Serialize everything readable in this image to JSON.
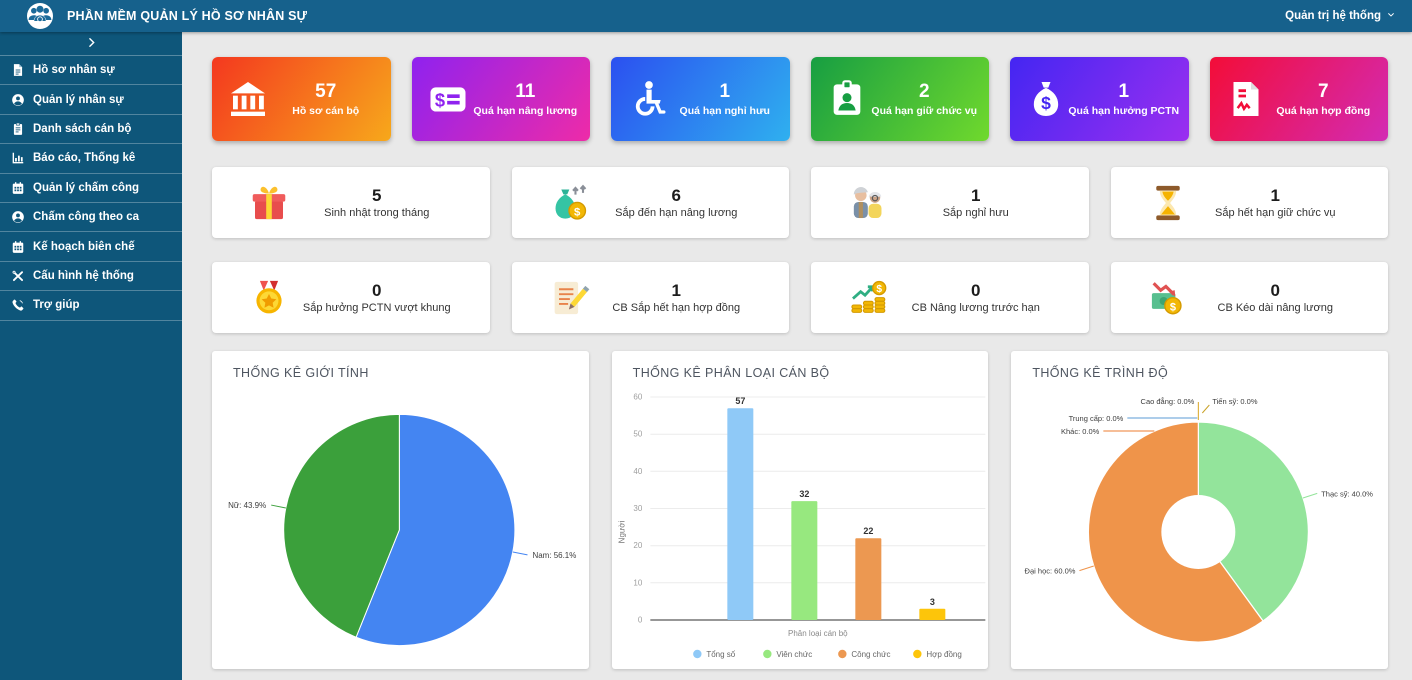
{
  "header": {
    "title": "PHẦN MỀM QUẢN LÝ HỒ SƠ NHÂN SỰ",
    "user_menu": "Quản trị hệ thống",
    "logo_icon": "people-group-icon"
  },
  "sidebar": {
    "collapse_icon": "chevron-right-icon",
    "items": [
      {
        "label": "Hồ sơ nhân sự",
        "icon": "file-icon"
      },
      {
        "label": "Quản lý nhân sự",
        "icon": "user-icon"
      },
      {
        "label": "Danh sách cán bộ",
        "icon": "clipboard-icon"
      },
      {
        "label": "Báo cáo, Thống kê",
        "icon": "chart-icon"
      },
      {
        "label": "Quản lý chấm công",
        "icon": "calendar-icon"
      },
      {
        "label": "Chấm công theo ca",
        "icon": "user-icon"
      },
      {
        "label": "Kế hoạch biên chế",
        "icon": "calendar-icon"
      },
      {
        "label": "Cấu hình hệ thống",
        "icon": "tools-icon"
      },
      {
        "label": "Trợ giúp",
        "icon": "phone-icon"
      }
    ]
  },
  "stat_cards": [
    {
      "value": "57",
      "label": "Hồ sơ cán bộ",
      "icon": "bank-icon",
      "gradient": [
        "#f4381f",
        "#f7a81b"
      ]
    },
    {
      "value": "11",
      "label": "Quá hạn nâng lương",
      "icon": "money-check-icon",
      "gradient": [
        "#8f22ef",
        "#ee2ba8"
      ]
    },
    {
      "value": "1",
      "label": "Quá hạn nghỉ hưu",
      "icon": "wheelchair-icon",
      "gradient": [
        "#2b50f0",
        "#2fb0ef"
      ]
    },
    {
      "value": "2",
      "label": "Quá hạn giữ chức vụ",
      "icon": "id-badge-icon",
      "gradient": [
        "#179e42",
        "#70d92d"
      ]
    },
    {
      "value": "1",
      "label": "Quá hạn hưởng PCTN",
      "icon": "money-bag-icon",
      "gradient": [
        "#4426f2",
        "#9b2ff0"
      ]
    },
    {
      "value": "7",
      "label": "Quá hạn hợp đồng",
      "icon": "contract-icon",
      "gradient": [
        "#f30d38",
        "#d32bb4"
      ]
    }
  ],
  "info_cards": [
    {
      "value": "5",
      "label": "Sinh nhật trong tháng",
      "icon": "gift-icon"
    },
    {
      "value": "6",
      "label": "Sắp đến hạn nâng lương",
      "icon": "moneybag-up-icon"
    },
    {
      "value": "1",
      "label": "Sắp nghỉ hưu",
      "icon": "elderly-couple-icon"
    },
    {
      "value": "1",
      "label": "Sắp hết hạn giữ chức vụ",
      "icon": "hourglass-icon"
    },
    {
      "value": "0",
      "label": "Sắp hưởng PCTN vượt khung",
      "icon": "medal-icon"
    },
    {
      "value": "1",
      "label": "CB Sắp hết hạn hợp đồng",
      "icon": "contract-edit-icon"
    },
    {
      "value": "0",
      "label": "CB Nâng lương trước hạn",
      "icon": "coins-rise-icon"
    },
    {
      "value": "0",
      "label": "CB Kéo dài nâng lương",
      "icon": "money-decline-icon"
    }
  ],
  "chart_data": [
    {
      "type": "pie",
      "title": "THỐNG KÊ GIỚI TÍNH",
      "legend_position": "labeled",
      "slices": [
        {
          "label": "Nam",
          "value": 56.1,
          "color": "#4485f2",
          "display": "Nam: 56.1%"
        },
        {
          "label": "Nữ",
          "value": 43.9,
          "color": "#3ba03b",
          "display": "Nữ: 43.9%"
        }
      ]
    },
    {
      "type": "bar",
      "title": "THỐNG KÊ PHÂN LOẠI CÁN BỘ",
      "categories": [
        "Tổng số",
        "Viên chức",
        "Công chức",
        "Hợp đồng"
      ],
      "values": [
        57,
        32,
        22,
        3
      ],
      "colors": [
        "#8fc9f7",
        "#97e87f",
        "#ec9851",
        "#fdc50a"
      ],
      "xlabel": "Phân loại cán bộ",
      "ylabel": "Người",
      "ylim": [
        0,
        60
      ],
      "yticks": [
        0,
        10,
        20,
        30,
        40,
        50,
        60
      ],
      "grid": true,
      "legend_position": "bottom"
    },
    {
      "type": "donut",
      "title": "THỐNG KÊ TRÌNH ĐỘ",
      "legend_position": "labeled",
      "slices": [
        {
          "label": "Thạc sỹ",
          "value": 40.0,
          "color": "#93e49b",
          "display": "Thạc sỹ: 40.0%"
        },
        {
          "label": "Đại học",
          "value": 60.0,
          "color": "#ef944a",
          "display": "Đại học: 60.0%"
        },
        {
          "label": "Cao đẳng",
          "value": 0.0,
          "color": "#d9a521, ",
          "display": "Cao đẳng: 0.0%"
        },
        {
          "label": "Tiến sỹ",
          "value": 0.0,
          "color": "#c9a227",
          "display": "Tiến sỹ: 0.0%"
        },
        {
          "label": "Trung cấp",
          "value": 0.0,
          "color": "#5b9bd5",
          "display": "Trung cấp: 0.0%"
        },
        {
          "label": "Khác",
          "value": 0.0,
          "color": "#ed7d31",
          "display": "Khác: 0.0%"
        }
      ]
    }
  ]
}
